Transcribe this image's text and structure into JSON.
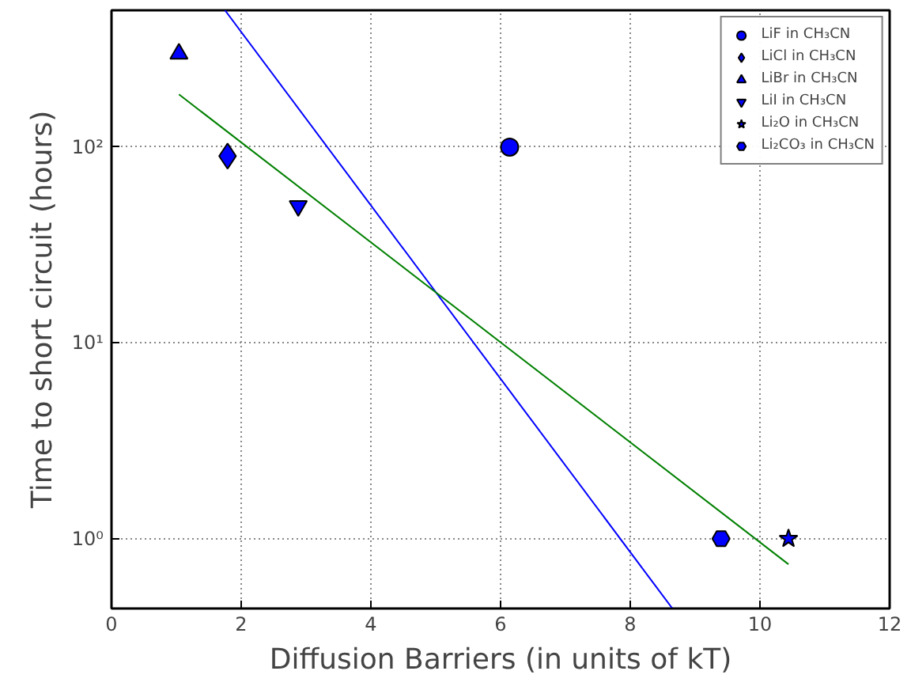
{
  "chart_data": {
    "type": "scatter",
    "xlabel": "Diffusion Barriers (in units of kT)",
    "ylabel": "Time to short circuit (hours)",
    "xlim": [
      0,
      12
    ],
    "xticks": [
      0,
      2,
      4,
      6,
      8,
      10,
      12
    ],
    "ylim": [
      0.44,
      500
    ],
    "yticks": [
      {
        "value": 1,
        "label": "10⁰"
      },
      {
        "value": 10,
        "label": "10¹"
      },
      {
        "value": 100,
        "label": "10²"
      }
    ],
    "log": "y",
    "grid": true,
    "legend": "top right",
    "series": [
      {
        "name": "LiF in CH₃CN",
        "color": "#0000ff",
        "marker": "circle",
        "x": [
          6.14
        ],
        "values": [
          100
        ]
      },
      {
        "name": "LiCl in CH₃CN",
        "color": "#0000ff",
        "marker": "diamond",
        "x": [
          1.79
        ],
        "values": [
          90
        ]
      },
      {
        "name": "LiBr in CH₃CN",
        "color": "#0000ff",
        "marker": "triangle",
        "x": [
          1.04
        ],
        "values": [
          300
        ]
      },
      {
        "name": "LiI in CH₃CN",
        "color": "#0000ff",
        "marker": "triangle_down",
        "x": [
          2.88
        ],
        "values": [
          50
        ]
      },
      {
        "name": "Li₂O in CH₃CN",
        "color": "#0000ff",
        "marker": "star",
        "x": [
          10.44
        ],
        "values": [
          1
        ]
      },
      {
        "name": "Li₂CO₃ in CH₃CN",
        "color": "#0000ff",
        "x": [
          9.4
        ],
        "values": [
          1
        ]
      },
      {
        "type": "line",
        "color": "#0000ff",
        "x": [
          1.75,
          8.65
        ],
        "values": [
          500,
          0.44
        ]
      },
      {
        "type": "line",
        "color": "#008000",
        "x": [
          1.04,
          10.44
        ],
        "values": [
          186,
          0.74
        ]
      }
    ]
  }
}
